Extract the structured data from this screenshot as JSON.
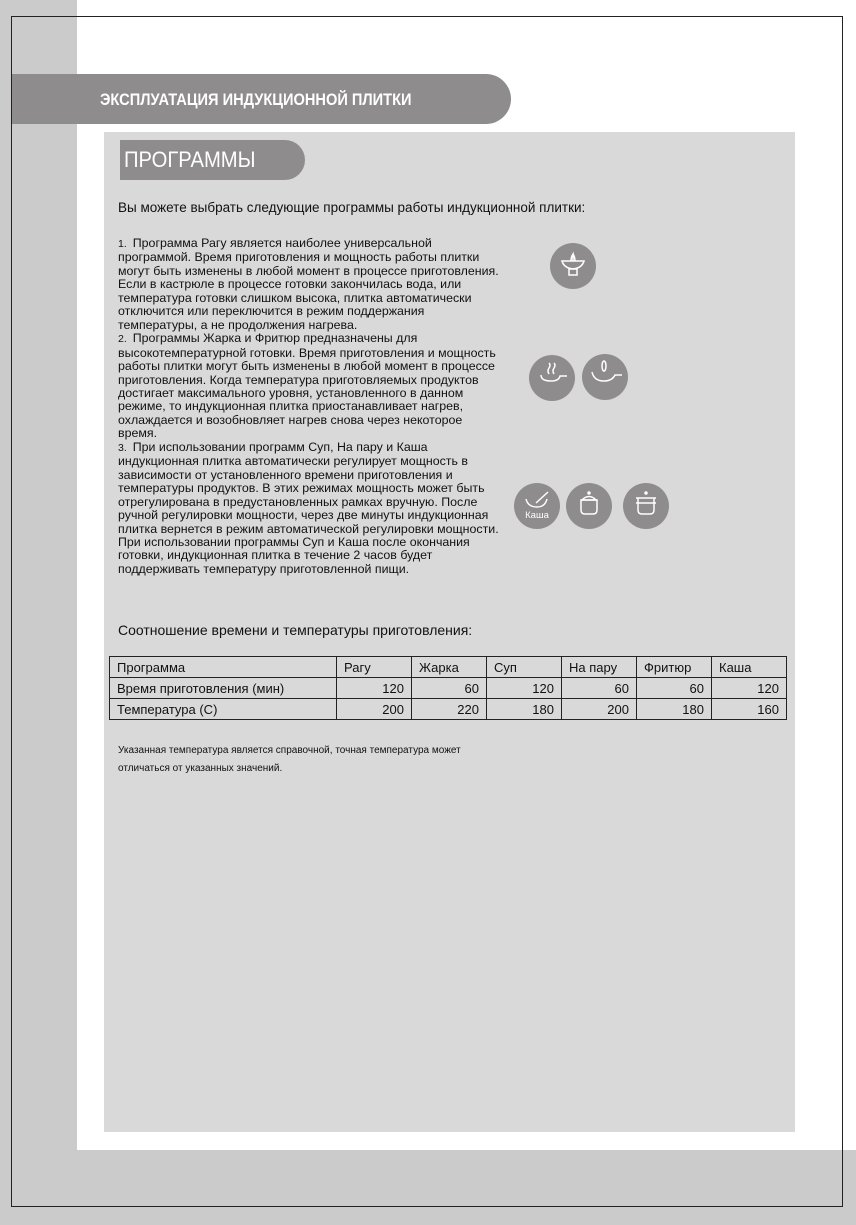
{
  "header": {
    "title": "ЭКСПЛУАТАЦИЯ ИНДУКЦИОННОЙ ПЛИТКИ"
  },
  "section": {
    "title": "ПРОГРАММЫ"
  },
  "intro": "Вы можете выбрать следующие программы работы индукционной плитки:",
  "items": [
    {
      "num": "1.",
      "lines": [
        "Программа Рагу является наиболее универсальной",
        "программой. Время приготовления и мощность работы плитки",
        "могут быть изменены в любой момент в процессе приготовления.",
        "Если в кастрюле в процессе готовки закончилась вода, или",
        "температура готовки слишком высока, плитка автоматически",
        "отключится или переключится в режим поддержания",
        "температуры, а не продолжения нагрева."
      ]
    },
    {
      "num": "2.",
      "lines": [
        "Программы Жарка и Фритюр предназначены для",
        "высокотемпературной готовки. Время приготовления и мощность",
        "работы плитки могут быть изменены в любой момент в процессе",
        "приготовления. Когда температура приготовляемых продуктов",
        "достигает максимального уровня, установленного в данном",
        "режиме, то индукционная плитка приостанавливает нагрев,",
        "охлаждается и возобновляет нагрев снова через некоторое",
        "время."
      ]
    },
    {
      "num": "3.",
      "lines": [
        "При использовании программ Суп, На пару и Каша",
        "индукционная плитка автоматически регулирует мощность в",
        "зависимости от установленного времени приготовления и",
        "температуры продуктов. В этих режимах мощность может быть",
        "отрегулирована в предустановленных рамках вручную. После",
        "ручной регулировки мощности, через две минуты индукционная",
        "плитка вернется в режим автоматической регулировки мощности.",
        "При использовании программы Суп и Каша после окончания",
        "готовки, индукционная плитка в течение 2 часов будет",
        "поддерживать температуру приготовленной пищи."
      ]
    }
  ],
  "icons": {
    "ragu": "ragu-bowl-icon",
    "fry": "frying-pan-steam-icon",
    "deep_fry": "deep-fry-pan-icon",
    "kasha": "porridge-bowl-icon",
    "kasha_label": "Каша",
    "soup": "soup-pot-icon",
    "steam": "steamer-pot-icon"
  },
  "table_title": "Соотношение времени и температуры приготовления:",
  "table": {
    "header": [
      "Программа",
      "Рагу",
      "Жарка",
      "Суп",
      "На пару",
      "Фритюр",
      "Каша"
    ],
    "rows": [
      [
        "Время приготовления (мин)",
        "120",
        "60",
        "120",
        "60",
        "60",
        "120"
      ],
      [
        "Температура (С)",
        "200",
        "220",
        "180",
        "200",
        "180",
        "160"
      ]
    ]
  },
  "note": [
    "Указанная температура является справочной, точная температура может",
    "отличаться от указанных значений."
  ],
  "colors": {
    "band": "#8e8c8d",
    "panel": "#d9d9d9",
    "margin": "#cbcbcb"
  }
}
